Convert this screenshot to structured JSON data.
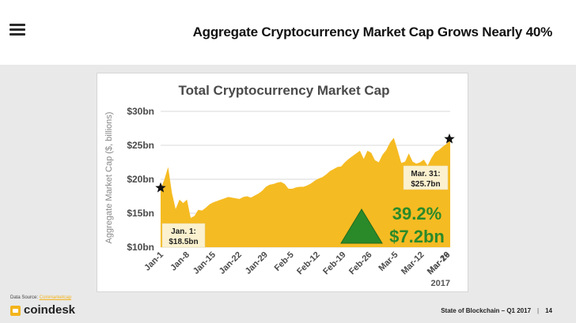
{
  "header": {
    "title": "Aggregate Cryptocurrency Market Cap Grows Nearly 40%"
  },
  "chart_data": {
    "type": "area",
    "title": "Total Cryptocurrency Market Cap",
    "ylabel": "Aggregate Market Cap ($, billions)",
    "xlabel": "",
    "year_label": "2017",
    "ylim": [
      10,
      30
    ],
    "yticks": [
      {
        "value": 10,
        "label": "$10bn"
      },
      {
        "value": 15,
        "label": "$15bn"
      },
      {
        "value": 20,
        "label": "$20bn"
      },
      {
        "value": 25,
        "label": "$25bn"
      },
      {
        "value": 30,
        "label": "$30bn"
      }
    ],
    "xticks": [
      "Jan-1",
      "Jan-8",
      "Jan-15",
      "Jan-22",
      "Jan-29",
      "Feb-5",
      "Feb-12",
      "Feb-19",
      "Feb-26",
      "Mar-5",
      "Mar-12",
      "Mar-19",
      "Mar-26"
    ],
    "grid": true,
    "color": "#f5bb22",
    "series": [
      {
        "values": [
          18.5,
          20.0,
          21.8,
          18.0,
          15.6,
          17.0,
          16.5,
          17.0,
          14.3,
          14.6,
          15.5,
          15.4,
          15.8,
          16.3,
          16.6,
          16.8,
          17.0,
          17.2,
          17.4,
          17.3,
          17.2,
          17.1,
          17.4,
          17.5,
          17.3,
          17.6,
          17.9,
          18.3,
          18.9,
          19.2,
          19.3,
          19.5,
          19.6,
          19.3,
          18.6,
          18.6,
          18.8,
          18.9,
          18.9,
          19.1,
          19.4,
          19.8,
          20.1,
          20.3,
          20.7,
          21.2,
          21.5,
          21.8,
          21.9,
          22.5,
          23.0,
          23.4,
          23.8,
          24.2,
          23.0,
          24.2,
          23.9,
          22.8,
          22.5,
          23.6,
          24.3,
          25.4,
          26.1,
          24.3,
          22.4,
          22.6,
          23.8,
          22.6,
          22.3,
          22.5,
          22.9,
          22.0,
          23.1,
          24.0,
          24.3,
          24.8,
          25.2,
          25.7
        ]
      }
    ],
    "annotations": {
      "start": {
        "date": "Jan. 1:",
        "value": "$18.5bn"
      },
      "end": {
        "date": "Mar. 31:",
        "value": "$25.7bn"
      },
      "growth_pct": "39.2%",
      "growth_abs": "$7.2bn",
      "growth_color": "#2a8a2a"
    }
  },
  "footer": {
    "source_label": "Data Source:",
    "source_link": "Coinmarketcap",
    "logo": "coindesk",
    "report": "State of Blockchain – Q1 2017",
    "page": "14"
  }
}
